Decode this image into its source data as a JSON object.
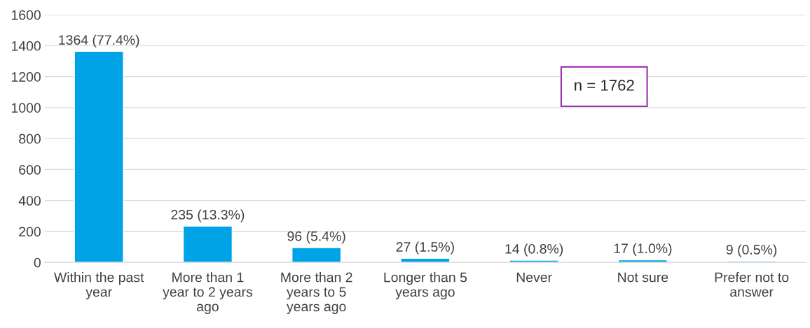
{
  "chart_data": {
    "type": "bar",
    "categories": [
      "Within the past year",
      "More than 1 year to 2 years ago",
      "More than 2 years to 5 years ago",
      "Longer than 5 years ago",
      "Never",
      "Not sure",
      "Prefer not to answer"
    ],
    "values": [
      1364,
      235,
      96,
      27,
      14,
      17,
      9
    ],
    "value_labels": [
      "1364 (77.4%)",
      "235 (13.3%)",
      "96 (5.4%)",
      "27 (1.5%)",
      "14 (0.8%)",
      "17 (1.0%)",
      "9 (0.5%)"
    ],
    "color": "#00a3e6",
    "ylim": [
      0,
      1600
    ],
    "yticks": [
      0,
      200,
      400,
      600,
      800,
      1000,
      1200,
      1400,
      1600
    ],
    "grid": "y",
    "annotations": [
      "n = 1762"
    ]
  }
}
